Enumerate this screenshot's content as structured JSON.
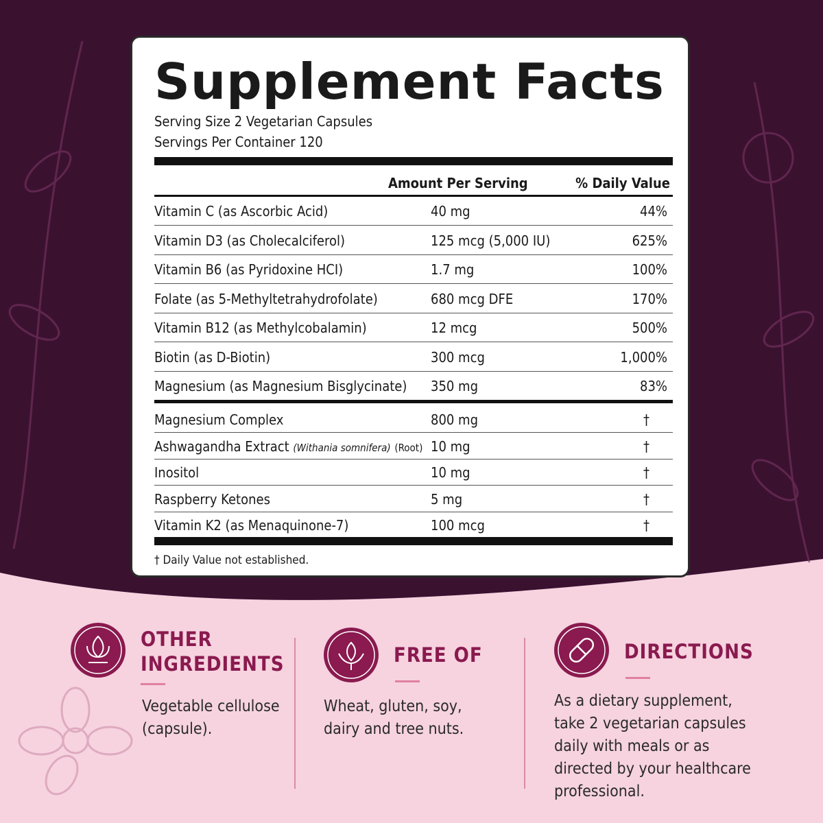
{
  "facts": {
    "title": "Supplement Facts",
    "serving_size": "Serving Size 2 Vegetarian Capsules",
    "servings_per_container": "Servings Per Container 120",
    "header_amount": "Amount Per Serving",
    "header_dv": "% Daily Value",
    "rows": [
      {
        "name": "Vitamin C (as Ascorbic Acid)",
        "amount": "40 mg",
        "dv": "44%"
      },
      {
        "name": "Vitamin D3 (as Cholecalciferol)",
        "amount": "125 mcg (5,000 IU)",
        "dv": "625%"
      },
      {
        "name": "Vitamin B6 (as Pyridoxine HCI)",
        "amount": "1.7 mg",
        "dv": "100%"
      },
      {
        "name": "Folate (as 5-Methyltetrahydrofolate)",
        "amount": "680 mcg DFE",
        "dv": "170%"
      },
      {
        "name": "Vitamin B12 (as Methylcobalamin)",
        "amount": "12 mcg",
        "dv": "500%"
      },
      {
        "name": "Biotin (as D-Biotin)",
        "amount": "300 mcg",
        "dv": "1,000%"
      },
      {
        "name": "Magnesium (as Magnesium Bisglycinate)",
        "amount": "350 mg",
        "dv": "83%"
      }
    ],
    "other_rows": [
      {
        "name": "Magnesium Complex",
        "amount": "800 mg",
        "dv": "†"
      },
      {
        "name": "Ashwagandha Extract",
        "latin": "(Withania somnifera)",
        "part": "(Root)",
        "amount": "10 mg",
        "dv": "†"
      },
      {
        "name": "Inositol",
        "amount": "10 mg",
        "dv": "†"
      },
      {
        "name": "Raspberry Ketones",
        "amount": "5 mg",
        "dv": "†"
      },
      {
        "name": "Vitamin K2 (as Menaquinone-7)",
        "amount": "100 mcg",
        "dv": "†"
      }
    ],
    "footnote": "† Daily Value not established."
  },
  "panels": [
    {
      "title": "OTHER INGREDIENTS",
      "text": "Vegetable cellulose (capsule)."
    },
    {
      "title": "FREE OF",
      "text": "Wheat, gluten, soy, dairy and tree nuts."
    },
    {
      "title": "DIRECTIONS",
      "text": "As a dietary supplement, take 2 vegetarian capsules daily with meals or as directed by your healthcare professional."
    }
  ]
}
